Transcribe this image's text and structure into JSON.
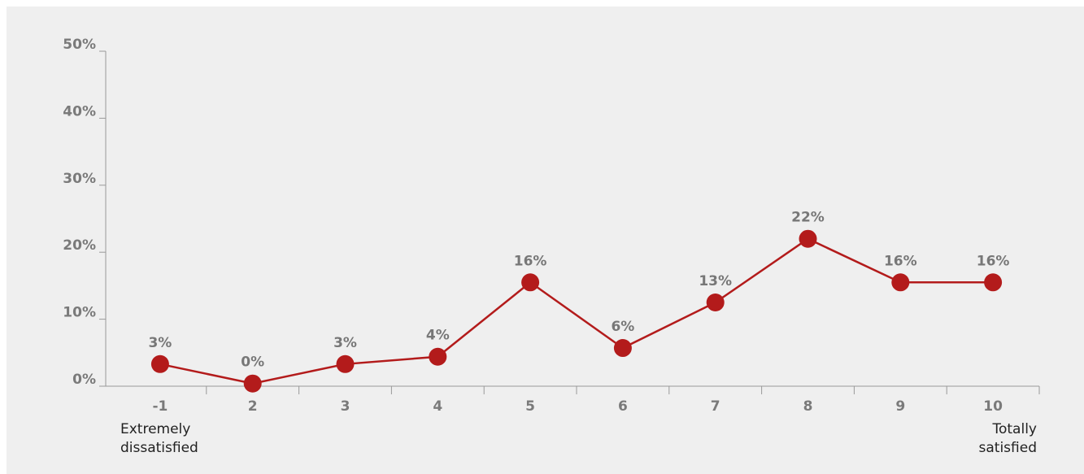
{
  "chart_data": {
    "type": "line",
    "categories": [
      "-1",
      "2",
      "3",
      "4",
      "5",
      "6",
      "7",
      "8",
      "9",
      "10"
    ],
    "values": [
      3.3,
      0.4,
      3.3,
      4.4,
      15.5,
      5.7,
      12.5,
      22,
      15.5,
      15.5
    ],
    "value_labels": [
      "3%",
      "0%",
      "3%",
      "4%",
      "16%",
      "6%",
      "13%",
      "22%",
      "16%",
      "16%"
    ],
    "color": "#b31b1b",
    "ylim": [
      0,
      50
    ],
    "yticks": [
      {
        "value": 0,
        "label": "0%"
      },
      {
        "value": 10,
        "label": "10%"
      },
      {
        "value": 20,
        "label": "20%"
      },
      {
        "value": 30,
        "label": "30%"
      },
      {
        "value": 40,
        "label": "40%"
      },
      {
        "value": 50,
        "label": "50%"
      }
    ],
    "annotations": [
      "Extremely dissatisfied",
      "Totally satisfied"
    ]
  }
}
